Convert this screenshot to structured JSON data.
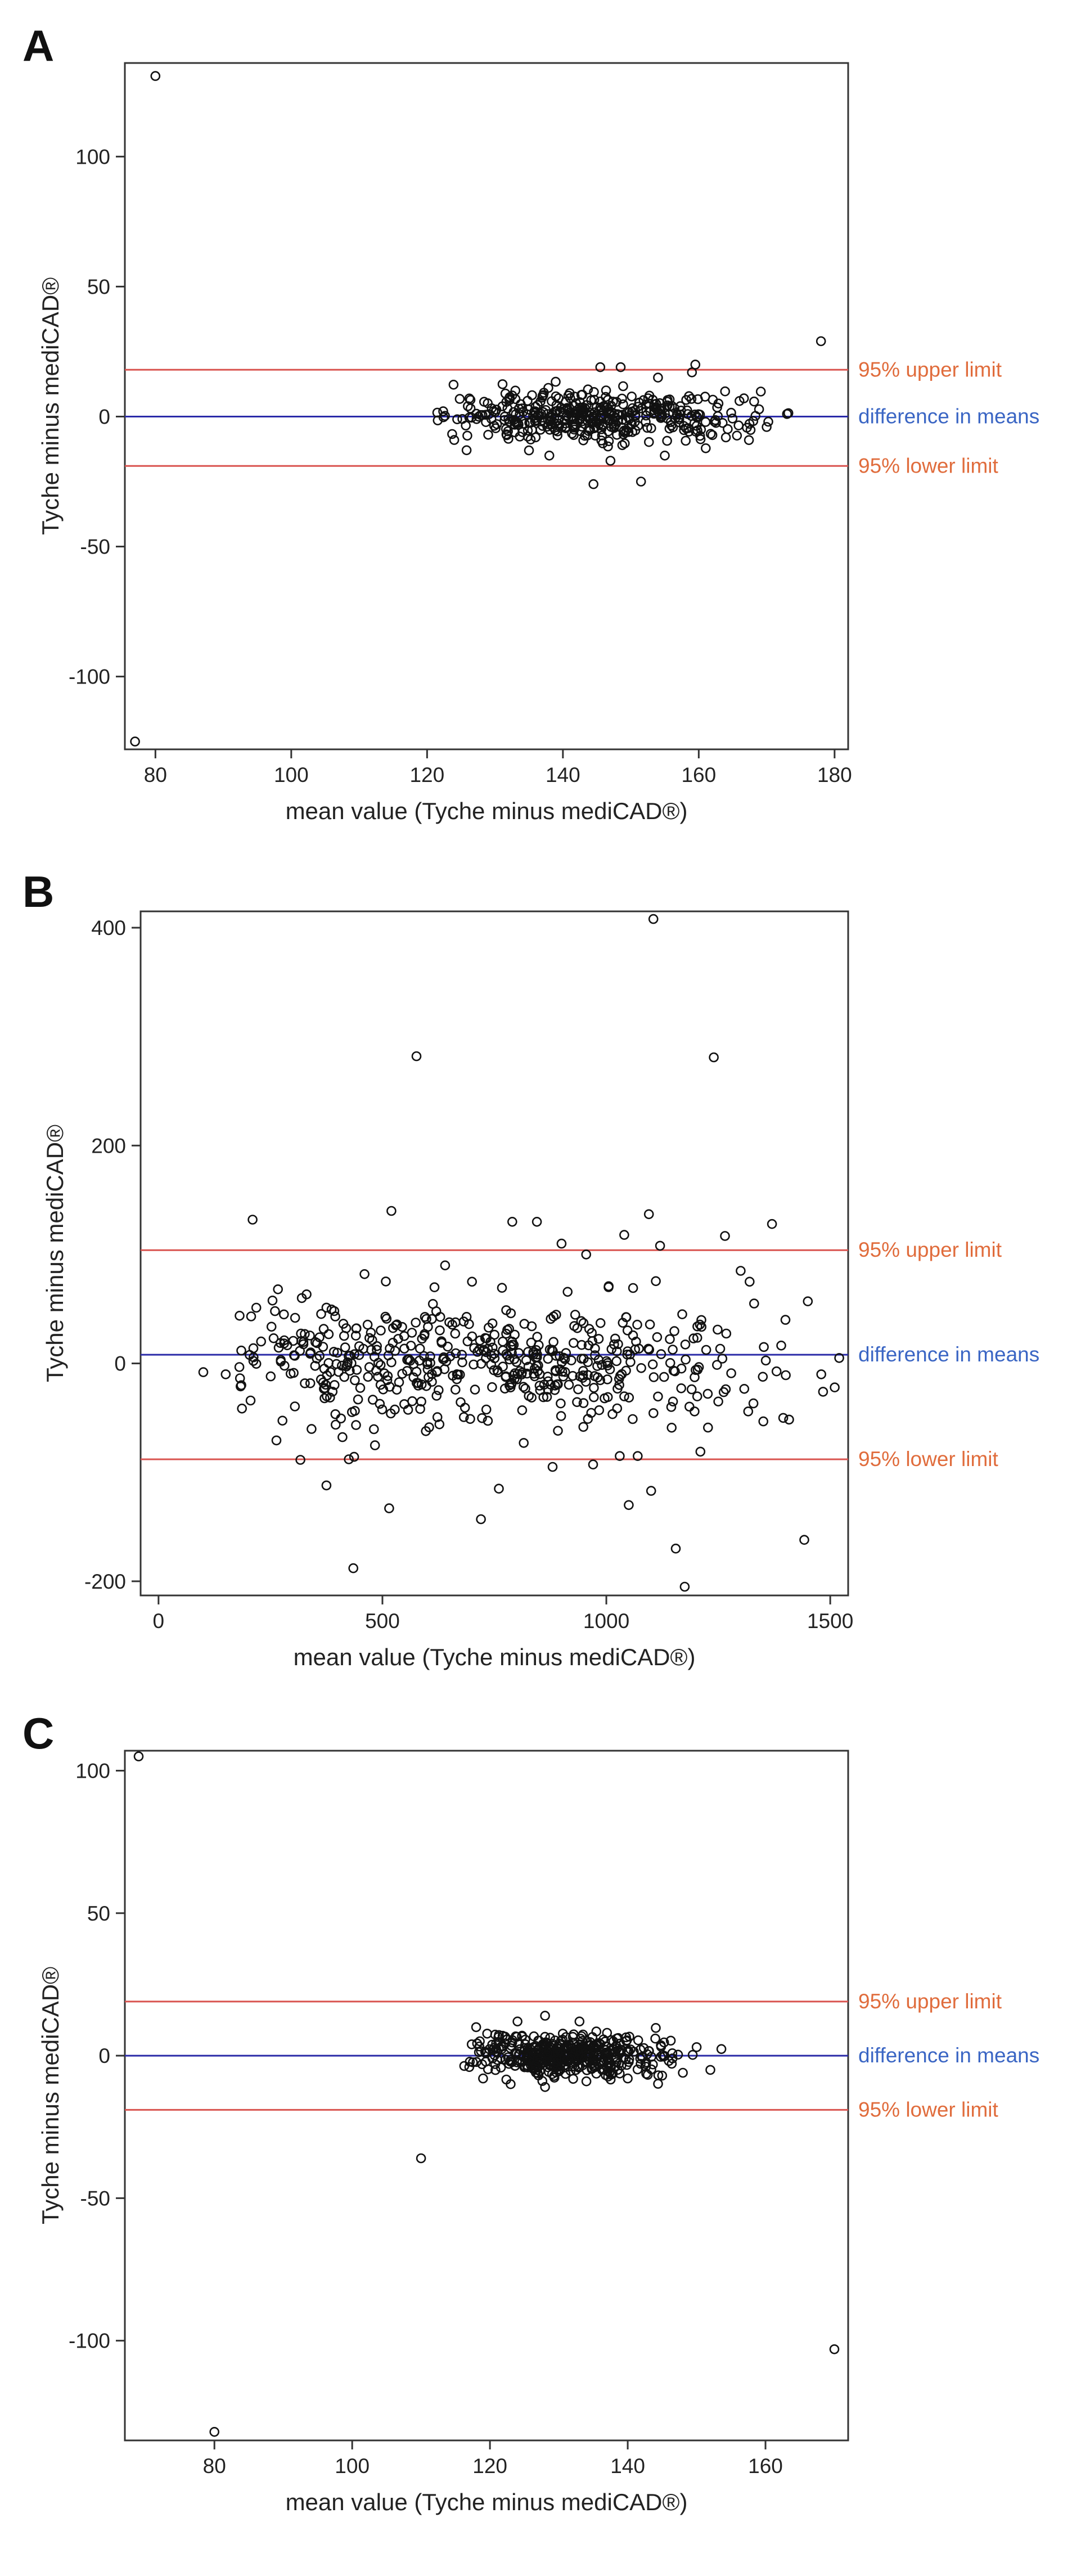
{
  "chart_data": [
    {
      "type": "scatter",
      "panel": "A",
      "xlabel": "mean value (Tyche minus mediCAD®)",
      "ylabel": "Tyche minus mediCAD®",
      "xlim": [
        75.5,
        182
      ],
      "ylim": [
        -128,
        136
      ],
      "xticks": [
        80,
        100,
        120,
        140,
        160,
        180
      ],
      "yticks": [
        -100,
        -50,
        0,
        50,
        100
      ],
      "reference_lines": [
        {
          "label": "95% upper limit",
          "value": 18,
          "color": "#d9534f",
          "label_color": "#e06c3c"
        },
        {
          "label": "difference in means",
          "value": 0,
          "color": "#2a2aa8",
          "label_color": "#3b66c4"
        },
        {
          "label": "95% lower limit",
          "value": -19,
          "color": "#d9534f",
          "label_color": "#e06c3c"
        }
      ],
      "outliers": [
        [
          80,
          131
        ],
        [
          77,
          -125
        ],
        [
          178,
          29
        ]
      ],
      "cluster": {
        "x_range": [
          119,
          176
        ],
        "x_center": 145,
        "x_sd": 11,
        "y_sd": 4.5,
        "n": 420
      },
      "extra_points": [
        [
          145.5,
          19
        ],
        [
          148.5,
          19
        ],
        [
          159.5,
          20
        ],
        [
          159,
          17
        ],
        [
          154,
          15
        ],
        [
          144.5,
          -26
        ],
        [
          151.5,
          -25
        ],
        [
          147,
          -17
        ],
        [
          155,
          -15
        ],
        [
          138,
          -15
        ],
        [
          135,
          -13
        ],
        [
          133,
          10
        ],
        [
          137,
          8
        ],
        [
          141,
          9
        ],
        [
          126,
          4
        ],
        [
          129,
          -7
        ],
        [
          124,
          -9
        ],
        [
          164,
          -8
        ],
        [
          166,
          6
        ],
        [
          170,
          -4
        ],
        [
          173,
          1
        ]
      ]
    },
    {
      "type": "scatter",
      "panel": "B",
      "xlabel": "mean value (Tyche minus mediCAD®)",
      "ylabel": "Tyche minus mediCAD®",
      "xlim": [
        -40,
        1540
      ],
      "ylim": [
        -213,
        415
      ],
      "xticks": [
        0,
        500,
        1000,
        1500
      ],
      "yticks": [
        -200,
        0,
        200,
        400
      ],
      "reference_lines": [
        {
          "label": "95% upper limit",
          "value": 104,
          "color": "#d9534f",
          "label_color": "#e06c3c"
        },
        {
          "label": "difference in means",
          "value": 8,
          "color": "#2a2aa8",
          "label_color": "#3b66c4"
        },
        {
          "label": "95% lower limit",
          "value": -88,
          "color": "#d9534f",
          "label_color": "#e06c3c"
        }
      ],
      "outliers": [
        [
          1105,
          408
        ],
        [
          576,
          282
        ],
        [
          1240,
          281
        ],
        [
          435,
          -188
        ],
        [
          1175,
          -205
        ],
        [
          1155,
          -170
        ],
        [
          1442,
          -162
        ],
        [
          720,
          -143
        ],
        [
          515,
          -133
        ],
        [
          375,
          -112
        ],
        [
          760,
          -115
        ],
        [
          1100,
          -117
        ],
        [
          880,
          -95
        ],
        [
          1210,
          -81
        ],
        [
          425,
          -88
        ],
        [
          210,
          132
        ],
        [
          520,
          140
        ],
        [
          1095,
          137
        ],
        [
          1265,
          117
        ],
        [
          1370,
          128
        ],
        [
          1450,
          57
        ],
        [
          1510,
          -22
        ],
        [
          1480,
          -10
        ],
        [
          1520,
          5
        ],
        [
          100,
          -8
        ],
        [
          150,
          -10
        ],
        [
          185,
          -20
        ]
      ],
      "cluster": {
        "x_range": [
          180,
          1500
        ],
        "x_center": 700,
        "x_sd": 330,
        "y_sd": 28,
        "n": 520
      },
      "extra_points": [
        [
          790,
          130
        ],
        [
          845,
          130
        ],
        [
          900,
          110
        ],
        [
          1040,
          118
        ],
        [
          1120,
          108
        ],
        [
          1300,
          85
        ],
        [
          1320,
          75
        ],
        [
          1400,
          40
        ],
        [
          1330,
          55
        ],
        [
          1005,
          70
        ],
        [
          955,
          100
        ],
        [
          640,
          90
        ],
        [
          700,
          75
        ],
        [
          460,
          82
        ],
        [
          320,
          60
        ],
        [
          280,
          45
        ],
        [
          260,
          48
        ],
        [
          1030,
          -85
        ],
        [
          1070,
          -85
        ],
        [
          1050,
          -130
        ],
        [
          1145,
          -40
        ],
        [
          1395,
          -50
        ],
        [
          1250,
          -35
        ]
      ]
    },
    {
      "type": "scatter",
      "panel": "C",
      "xlabel": "mean value (Tyche minus mediCAD®)",
      "ylabel": "Tyche minus mediCAD®",
      "xlim": [
        67,
        172
      ],
      "ylim": [
        -135,
        107
      ],
      "xticks": [
        80,
        100,
        120,
        140,
        160
      ],
      "yticks": [
        -100,
        -50,
        0,
        50,
        100
      ],
      "reference_lines": [
        {
          "label": "95% upper limit",
          "value": 19,
          "color": "#d9534f",
          "label_color": "#e06c3c"
        },
        {
          "label": "difference in means",
          "value": 0,
          "color": "#2a2aa8",
          "label_color": "#3b66c4"
        },
        {
          "label": "95% lower limit",
          "value": -19,
          "color": "#d9534f",
          "label_color": "#e06c3c"
        }
      ],
      "outliers": [
        [
          69,
          105
        ],
        [
          80,
          -132
        ],
        [
          110,
          -36
        ],
        [
          170,
          -103
        ]
      ],
      "cluster": {
        "x_range": [
          116,
          154
        ],
        "x_center": 131,
        "x_sd": 7,
        "y_sd": 3.8,
        "n": 460
      },
      "extra_points": [
        [
          118,
          10
        ],
        [
          124,
          12
        ],
        [
          128,
          14
        ],
        [
          133,
          12
        ],
        [
          137,
          8
        ],
        [
          144,
          6
        ],
        [
          150,
          3
        ],
        [
          152,
          -5
        ],
        [
          117,
          -4
        ],
        [
          119,
          -8
        ],
        [
          123,
          -10
        ],
        [
          128,
          -11
        ],
        [
          134,
          -9
        ],
        [
          140,
          -8
        ],
        [
          145,
          -7
        ],
        [
          148,
          -6
        ]
      ]
    }
  ]
}
